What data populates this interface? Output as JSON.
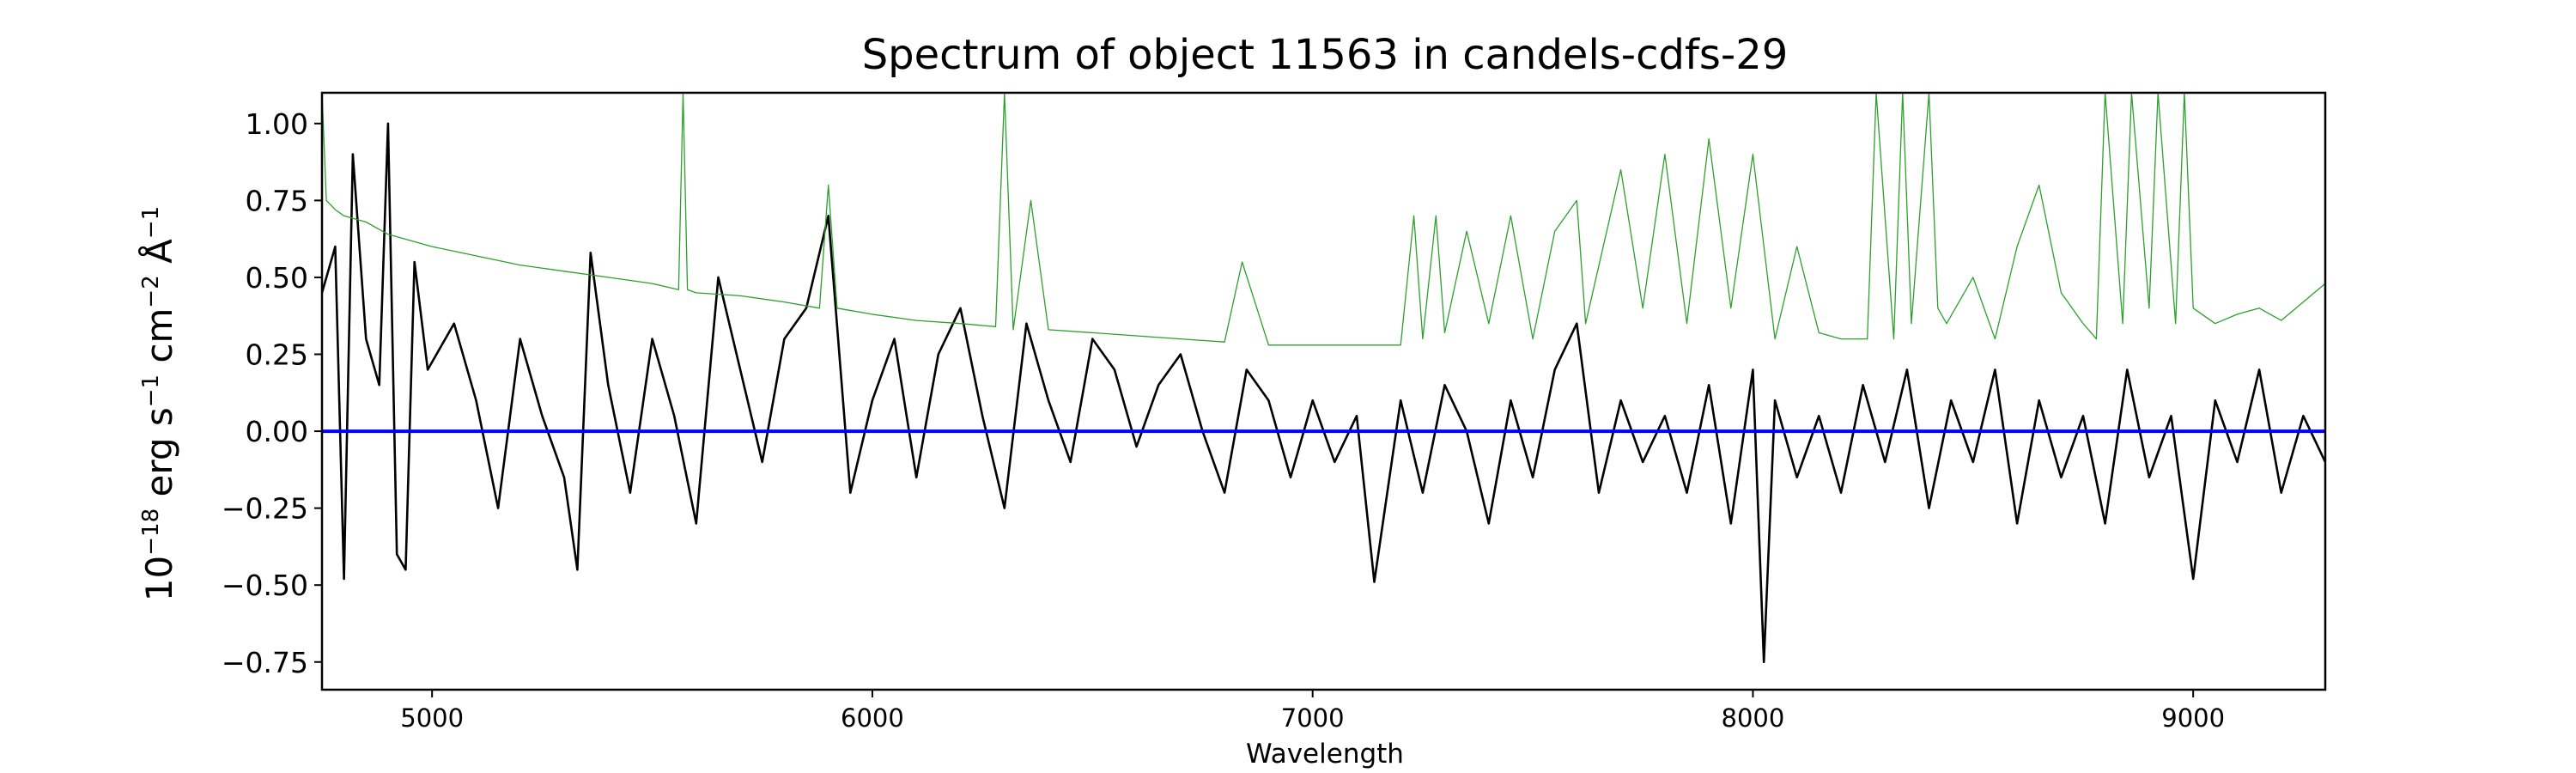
{
  "chart_data": {
    "type": "line",
    "title": "Spectrum of object 11563 in candels-cdfs-29",
    "xlabel": "Wavelength",
    "ylabel": {
      "base": "10",
      "exp1": "−18",
      "erg": " erg s",
      "exp2": "−1",
      "cm": " cm",
      "exp3": "−2",
      "ang": " Å",
      "exp4": "−1"
    },
    "xlim": [
      4750,
      9300
    ],
    "ylim": [
      -0.84,
      1.1
    ],
    "x_ticks": [
      5000,
      6000,
      7000,
      8000,
      9000
    ],
    "x_tick_labels": [
      "5000",
      "6000",
      "7000",
      "8000",
      "9000"
    ],
    "y_ticks": [
      -0.75,
      -0.5,
      -0.25,
      0.0,
      0.25,
      0.5,
      0.75,
      1.0
    ],
    "y_tick_labels": [
      "−0.75",
      "−0.50",
      "−0.25",
      "0.00",
      "0.25",
      "0.50",
      "0.75",
      "1.00"
    ],
    "grid": false,
    "legend": "none",
    "series": [
      {
        "role": "flux",
        "color": "#000000",
        "x": [
          4750,
          4780,
          4800,
          4820,
          4850,
          4880,
          4900,
          4920,
          4940,
          4960,
          4990,
          5050,
          5100,
          5150,
          5200,
          5250,
          5300,
          5330,
          5360,
          5400,
          5450,
          5500,
          5550,
          5600,
          5650,
          5700,
          5750,
          5800,
          5850,
          5900,
          5950,
          6000,
          6050,
          6100,
          6150,
          6200,
          6250,
          6300,
          6350,
          6400,
          6450,
          6500,
          6550,
          6600,
          6650,
          6700,
          6750,
          6800,
          6850,
          6900,
          6950,
          7000,
          7050,
          7100,
          7140,
          7200,
          7250,
          7300,
          7350,
          7400,
          7450,
          7500,
          7550,
          7600,
          7650,
          7700,
          7750,
          7800,
          7850,
          7900,
          7950,
          8000,
          8025,
          8050,
          8100,
          8150,
          8200,
          8250,
          8300,
          8350,
          8400,
          8450,
          8500,
          8550,
          8600,
          8650,
          8700,
          8750,
          8800,
          8850,
          8900,
          8950,
          9000,
          9050,
          9100,
          9150,
          9200,
          9250,
          9300
        ],
        "y": [
          0.45,
          0.6,
          -0.48,
          0.9,
          0.3,
          0.15,
          1.0,
          -0.4,
          -0.45,
          0.55,
          0.2,
          0.35,
          0.1,
          -0.25,
          0.3,
          0.05,
          -0.15,
          -0.45,
          0.58,
          0.15,
          -0.2,
          0.3,
          0.05,
          -0.3,
          0.5,
          0.2,
          -0.1,
          0.3,
          0.4,
          0.7,
          -0.2,
          0.1,
          0.3,
          -0.15,
          0.25,
          0.4,
          0.05,
          -0.25,
          0.35,
          0.1,
          -0.1,
          0.3,
          0.2,
          -0.05,
          0.15,
          0.25,
          0.0,
          -0.2,
          0.2,
          0.1,
          -0.15,
          0.1,
          -0.1,
          0.05,
          -0.49,
          0.1,
          -0.2,
          0.15,
          0.0,
          -0.3,
          0.1,
          -0.15,
          0.2,
          0.35,
          -0.2,
          0.1,
          -0.1,
          0.05,
          -0.2,
          0.15,
          -0.3,
          0.2,
          -0.75,
          0.1,
          -0.15,
          0.05,
          -0.2,
          0.15,
          -0.1,
          0.2,
          -0.25,
          0.1,
          -0.1,
          0.2,
          -0.3,
          0.1,
          -0.15,
          0.05,
          -0.3,
          0.2,
          -0.15,
          0.05,
          -0.48,
          0.1,
          -0.1,
          0.2,
          -0.2,
          0.05,
          -0.1
        ]
      },
      {
        "role": "error",
        "color": "#2ca02c",
        "x": [
          4750,
          4760,
          4780,
          4800,
          4850,
          4900,
          5000,
          5100,
          5200,
          5300,
          5400,
          5500,
          5560,
          5570,
          5580,
          5600,
          5700,
          5800,
          5880,
          5900,
          5920,
          6000,
          6100,
          6200,
          6280,
          6300,
          6320,
          6360,
          6400,
          6500,
          6600,
          6700,
          6800,
          6840,
          6900,
          7000,
          7100,
          7200,
          7230,
          7250,
          7280,
          7300,
          7350,
          7400,
          7450,
          7500,
          7550,
          7600,
          7620,
          7700,
          7750,
          7800,
          7850,
          7900,
          7950,
          8000,
          8050,
          8100,
          8150,
          8200,
          8260,
          8280,
          8320,
          8340,
          8360,
          8400,
          8420,
          8440,
          8500,
          8550,
          8600,
          8650,
          8700,
          8750,
          8780,
          8800,
          8840,
          8860,
          8900,
          8920,
          8960,
          8980,
          9000,
          9050,
          9100,
          9150,
          9200,
          9250,
          9300
        ],
        "y": [
          1.1,
          0.75,
          0.72,
          0.7,
          0.68,
          0.64,
          0.6,
          0.57,
          0.54,
          0.52,
          0.5,
          0.48,
          0.46,
          1.1,
          0.46,
          0.45,
          0.44,
          0.42,
          0.4,
          0.8,
          0.4,
          0.38,
          0.36,
          0.35,
          0.34,
          1.1,
          0.33,
          0.75,
          0.33,
          0.32,
          0.31,
          0.3,
          0.29,
          0.55,
          0.28,
          0.28,
          0.28,
          0.28,
          0.7,
          0.3,
          0.7,
          0.32,
          0.65,
          0.35,
          0.7,
          0.3,
          0.65,
          0.75,
          0.35,
          0.85,
          0.4,
          0.9,
          0.35,
          0.95,
          0.4,
          0.9,
          0.3,
          0.6,
          0.32,
          0.3,
          0.3,
          1.1,
          0.3,
          1.1,
          0.35,
          1.1,
          0.4,
          0.35,
          0.5,
          0.3,
          0.6,
          0.8,
          0.45,
          0.35,
          0.3,
          1.1,
          0.35,
          1.1,
          0.4,
          1.1,
          0.35,
          1.1,
          0.4,
          0.35,
          0.38,
          0.4,
          0.36,
          0.42,
          0.48
        ]
      },
      {
        "role": "zero-line",
        "color": "#0000ff",
        "x": [
          4750,
          9300
        ],
        "y": [
          0.0,
          0.0
        ]
      }
    ]
  }
}
